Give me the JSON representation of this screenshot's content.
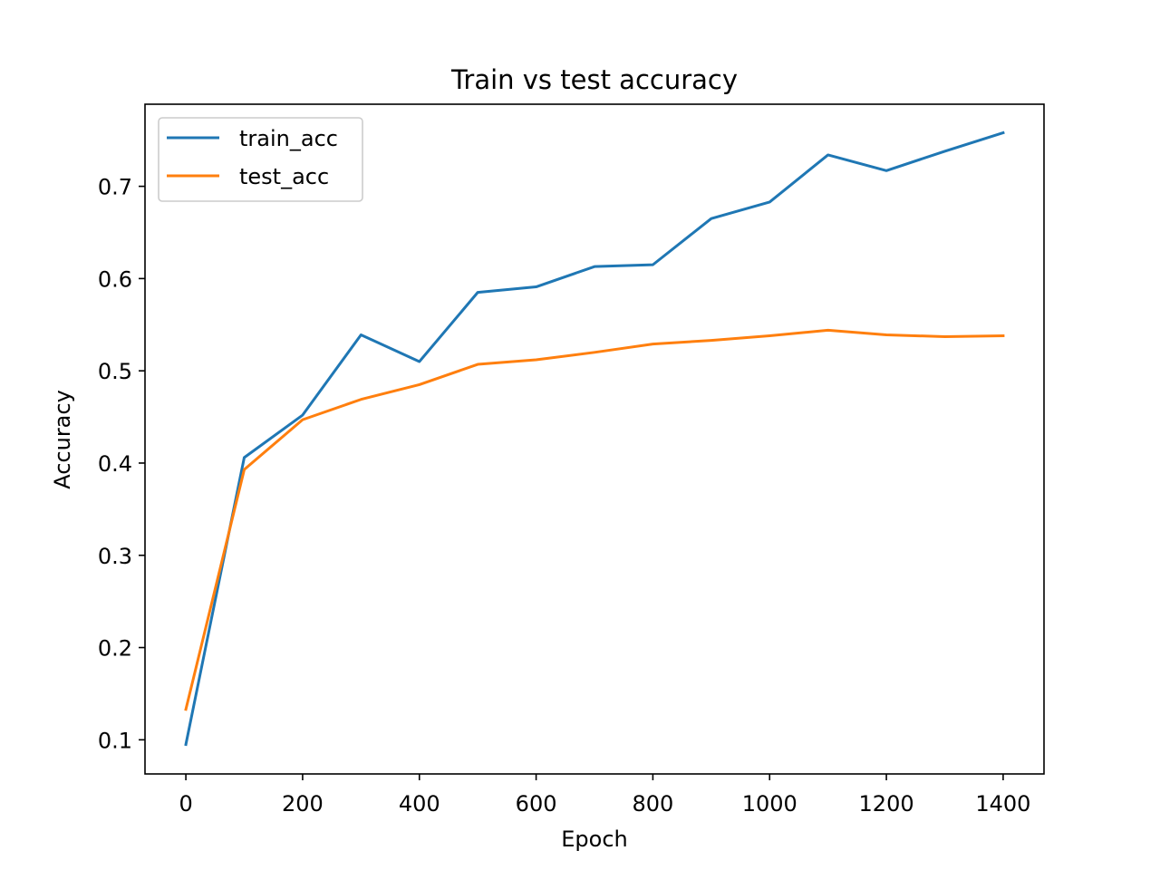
{
  "chart_data": {
    "type": "line",
    "title": "Train vs test accuracy",
    "xlabel": "Epoch",
    "ylabel": "Accuracy",
    "xlim": [
      -70,
      1470
    ],
    "ylim": [
      0.063,
      0.789
    ],
    "xticks": [
      0,
      200,
      400,
      600,
      800,
      1000,
      1200,
      1400
    ],
    "xtick_labels": [
      "0",
      "200",
      "400",
      "600",
      "800",
      "1000",
      "1200",
      "1400"
    ],
    "yticks": [
      0.1,
      0.2,
      0.3,
      0.4,
      0.5,
      0.6,
      0.7
    ],
    "ytick_labels": [
      "0.1",
      "0.2",
      "0.3",
      "0.4",
      "0.5",
      "0.6",
      "0.7"
    ],
    "grid": false,
    "legend_position": "top-left",
    "x": [
      0,
      100,
      200,
      300,
      400,
      500,
      600,
      700,
      800,
      900,
      1000,
      1100,
      1200,
      1300,
      1400
    ],
    "series": [
      {
        "name": "train_acc",
        "color": "#1f77b4",
        "values": [
          0.095,
          0.406,
          0.452,
          0.539,
          0.51,
          0.585,
          0.591,
          0.613,
          0.615,
          0.665,
          0.683,
          0.734,
          0.717,
          0.738,
          0.758
        ]
      },
      {
        "name": "test_acc",
        "color": "#ff7f0e",
        "values": [
          0.133,
          0.393,
          0.447,
          0.469,
          0.485,
          0.507,
          0.512,
          0.52,
          0.529,
          0.533,
          0.538,
          0.544,
          0.539,
          0.537,
          0.538
        ]
      }
    ]
  }
}
